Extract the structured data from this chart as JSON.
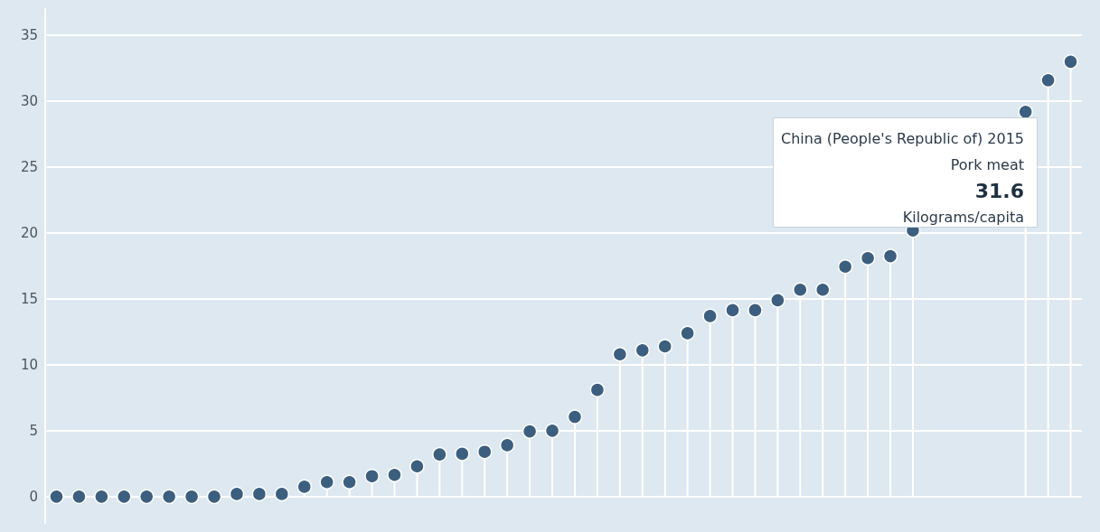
{
  "chart_data": {
    "type": "lollipop",
    "categories": [
      null,
      null,
      null,
      null,
      null,
      null,
      null,
      null,
      null,
      null,
      null,
      null,
      null,
      null,
      null,
      null,
      null,
      null,
      null,
      null,
      null,
      null,
      null,
      null,
      null,
      null,
      null,
      null,
      null,
      null,
      null,
      null,
      null,
      null,
      null,
      null,
      null,
      null,
      null,
      null,
      null,
      null,
      null,
      null,
      null,
      null
    ],
    "values": [
      0,
      0,
      0,
      0,
      0,
      0,
      0,
      0,
      0.2,
      0.2,
      0.2,
      0.75,
      1.1,
      1.1,
      1.55,
      1.65,
      2.3,
      3.2,
      3.25,
      3.4,
      3.9,
      4.95,
      5.0,
      6.05,
      8.1,
      10.8,
      11.1,
      11.4,
      12.4,
      13.7,
      14.15,
      14.15,
      14.9,
      15.7,
      15.7,
      17.45,
      18.1,
      18.25,
      20.2,
      null,
      null,
      null,
      null,
      29.2,
      31.6,
      33.0
    ],
    "color": "#3d5f7f",
    "ylim": [
      -2,
      37
    ],
    "yticks": [
      0,
      5,
      10,
      15,
      20,
      25,
      30,
      35
    ],
    "grid": "y",
    "marker": "circle",
    "annotations": [
      "China (People's Republic of) 2015",
      "Pork meat",
      "31.6",
      "Kilograms/capita"
    ]
  }
}
